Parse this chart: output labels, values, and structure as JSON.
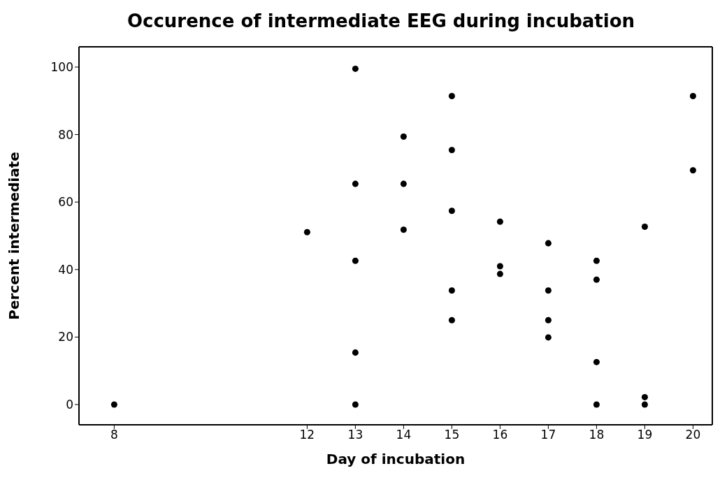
{
  "chart_data": {
    "type": "scatter",
    "title": "Occurence of intermediate EEG during incubation",
    "xlabel": "Day of incubation",
    "ylabel": "Percent intermediate",
    "x": [
      8,
      12,
      13,
      13,
      13,
      13,
      13,
      14,
      14,
      14,
      15,
      15,
      15,
      15,
      15,
      16,
      16,
      16,
      17,
      17,
      17,
      17,
      18,
      18,
      18,
      18,
      19,
      19,
      19,
      20,
      20
    ],
    "values": [
      0,
      51.1,
      99.5,
      65.4,
      42.6,
      15.4,
      0,
      79.4,
      65.4,
      51.8,
      91.4,
      75.4,
      57.4,
      33.8,
      25,
      54.2,
      41,
      38.7,
      47.8,
      33.8,
      25,
      19.9,
      42.6,
      37,
      12.6,
      0,
      52.7,
      2.2,
      0,
      91.4,
      69.4
    ],
    "color": "#000000",
    "marker": "circle",
    "xlim": [
      7.27,
      20.4
    ],
    "xticks": [
      8,
      12,
      13,
      14,
      15,
      16,
      17,
      18,
      19,
      20
    ],
    "ylim": [
      -6,
      106
    ],
    "yticks": [
      0,
      20,
      40,
      60,
      80,
      100
    ],
    "grid": false
  }
}
